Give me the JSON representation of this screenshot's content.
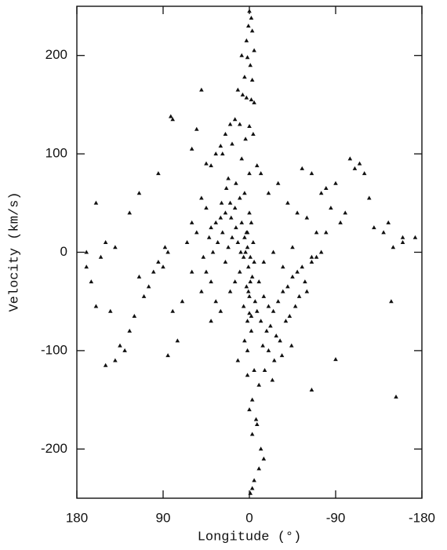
{
  "chart_data": {
    "type": "scatter",
    "xlabel": "Longitude (°)",
    "ylabel": "Velocity (km/s)",
    "xlim": [
      180,
      -180
    ],
    "ylim": [
      -250,
      250
    ],
    "xticks": [
      180,
      90,
      0,
      -90,
      -180
    ],
    "yticks": [
      -200,
      -100,
      0,
      100,
      200
    ],
    "marker": "triangle",
    "color": "#111111",
    "x": [
      0,
      -2,
      1,
      -3,
      3,
      -5,
      8,
      2,
      -1,
      5,
      -3,
      12,
      7,
      3,
      -2,
      -5,
      10,
      0,
      -4,
      4,
      15,
      20,
      25,
      30,
      35,
      18,
      8,
      -8,
      -12,
      0,
      50,
      55,
      60,
      82,
      80,
      45,
      40,
      28,
      22,
      14,
      5,
      10,
      15,
      20,
      25,
      30,
      35,
      40,
      45,
      50,
      3,
      8,
      12,
      18,
      22,
      28,
      33,
      38,
      42,
      48,
      2,
      6,
      9,
      14,
      19,
      24,
      29,
      55,
      60,
      65,
      0,
      -2,
      2,
      -4,
      4,
      -1,
      1,
      -3,
      3,
      0,
      -6,
      6,
      -8,
      -2,
      2,
      -5,
      5,
      -1,
      1,
      0,
      -10,
      -15,
      -20,
      -25,
      -30,
      -35,
      -40,
      -45,
      -50,
      -55,
      -12,
      -18,
      -22,
      -28,
      -32,
      -38,
      -42,
      -48,
      -52,
      -58,
      -14,
      -20,
      -26,
      -34,
      -44,
      -60,
      -65,
      -70,
      -16,
      -24,
      -5,
      -10,
      -3,
      0,
      -7,
      -8,
      -3,
      -12,
      -15,
      -10,
      -5,
      -3,
      -1,
      2,
      -20,
      -30,
      -40,
      -50,
      -60,
      -70,
      -80,
      -90,
      -95,
      -100,
      -105,
      -110,
      -115,
      -120,
      -125,
      -130,
      -140,
      -145,
      -150,
      -160,
      -75,
      -85,
      -65,
      -55,
      40,
      50,
      60,
      70,
      80,
      90,
      100,
      110,
      120,
      130,
      140,
      150,
      160,
      165,
      170,
      95,
      105,
      125,
      135,
      145,
      75,
      85,
      115,
      155,
      140,
      150,
      160,
      170,
      115,
      125,
      95,
      88,
      85,
      -160,
      -153,
      -173,
      -148,
      -90,
      10,
      15,
      20,
      25,
      30,
      -2,
      5,
      12,
      -15,
      -25,
      35,
      40,
      45,
      -35,
      -45,
      -65,
      -75,
      -80,
      -65,
      2
    ],
    "values": [
      245,
      238,
      230,
      225,
      215,
      205,
      200,
      198,
      190,
      178,
      175,
      165,
      160,
      157,
      155,
      152,
      130,
      128,
      120,
      115,
      135,
      130,
      120,
      108,
      100,
      110,
      95,
      88,
      80,
      80,
      165,
      125,
      105,
      138,
      135,
      90,
      88,
      100,
      75,
      70,
      60,
      55,
      45,
      50,
      40,
      35,
      30,
      25,
      45,
      55,
      20,
      30,
      10,
      15,
      5,
      20,
      10,
      0,
      15,
      -5,
      5,
      -5,
      0,
      25,
      35,
      65,
      50,
      20,
      30,
      10,
      40,
      30,
      20,
      10,
      0,
      -5,
      -15,
      -25,
      -35,
      -45,
      -50,
      -55,
      -60,
      -65,
      -70,
      -10,
      15,
      -30,
      -40,
      -62,
      -30,
      -45,
      -55,
      -60,
      -50,
      -40,
      -35,
      -25,
      -20,
      -15,
      -70,
      -80,
      -75,
      -85,
      -90,
      -70,
      -65,
      -55,
      -45,
      -30,
      -95,
      -100,
      -110,
      -105,
      -95,
      -40,
      -10,
      -5,
      -120,
      -130,
      -120,
      -135,
      -150,
      -160,
      -170,
      -175,
      -185,
      -200,
      -210,
      -220,
      -232,
      -240,
      -245,
      -100,
      60,
      70,
      50,
      40,
      35,
      20,
      65,
      70,
      30,
      40,
      95,
      85,
      90,
      80,
      55,
      25,
      20,
      30,
      5,
      15,
      60,
      45,
      80,
      85,
      -30,
      -40,
      -20,
      -50,
      -60,
      -15,
      -20,
      -45,
      -65,
      -100,
      -110,
      -115,
      -55,
      -30,
      -15,
      -10,
      -35,
      -80,
      -95,
      -60,
      -90,
      -105,
      -25,
      -5,
      5,
      10,
      50,
      0,
      60,
      40,
      80,
      5,
      0,
      10,
      -147,
      15,
      -50,
      -109,
      -20,
      -30,
      -40,
      -10,
      -60,
      -80,
      -90,
      -110,
      -10,
      0,
      -50,
      -70,
      -20,
      -15,
      5,
      -140,
      0,
      20,
      -5,
      -125
    ]
  }
}
